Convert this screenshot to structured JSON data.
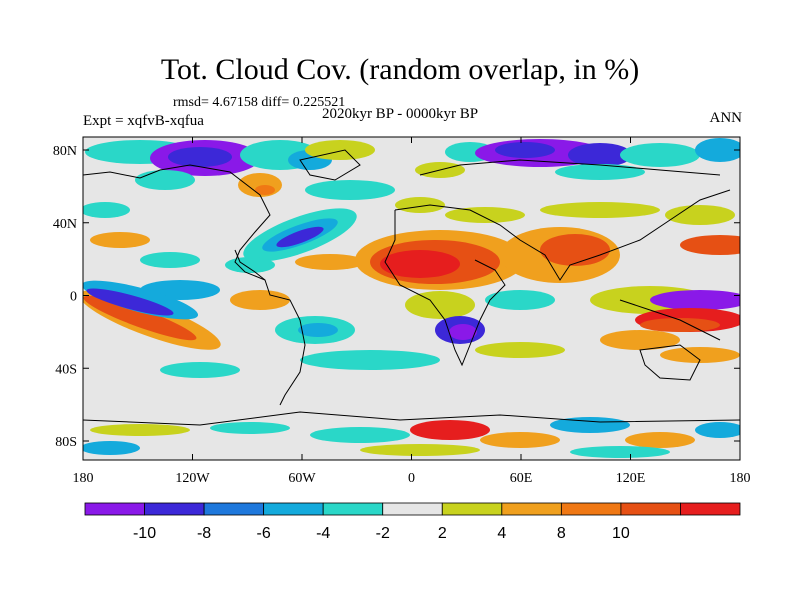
{
  "title": "Tot. Cloud Cov. (random overlap, in %)",
  "stats": "rmsd= 4.67158 diff= 0.225521",
  "subtitle": "2020kyr BP - 0000kyr BP",
  "experiment": "Expt = xqfvB-xqfua",
  "season": "ANN",
  "lon_ticks": [
    "180",
    "120W",
    "60W",
    "0",
    "60E",
    "120E",
    "180"
  ],
  "lat_ticks": [
    "80N",
    "40N",
    "0",
    "40S",
    "80S"
  ],
  "colorbar": {
    "labels": [
      "-10",
      "-8",
      "-6",
      "-4",
      "-2",
      "2",
      "4",
      "8",
      "10"
    ],
    "colors": [
      "#8a19e8",
      "#3c28d8",
      "#1e78dc",
      "#14aadc",
      "#2ad7c8",
      "#e6e6e6",
      "#c8d21e",
      "#f0a01e",
      "#f07814",
      "#e65014",
      "#e61e1e"
    ]
  }
}
